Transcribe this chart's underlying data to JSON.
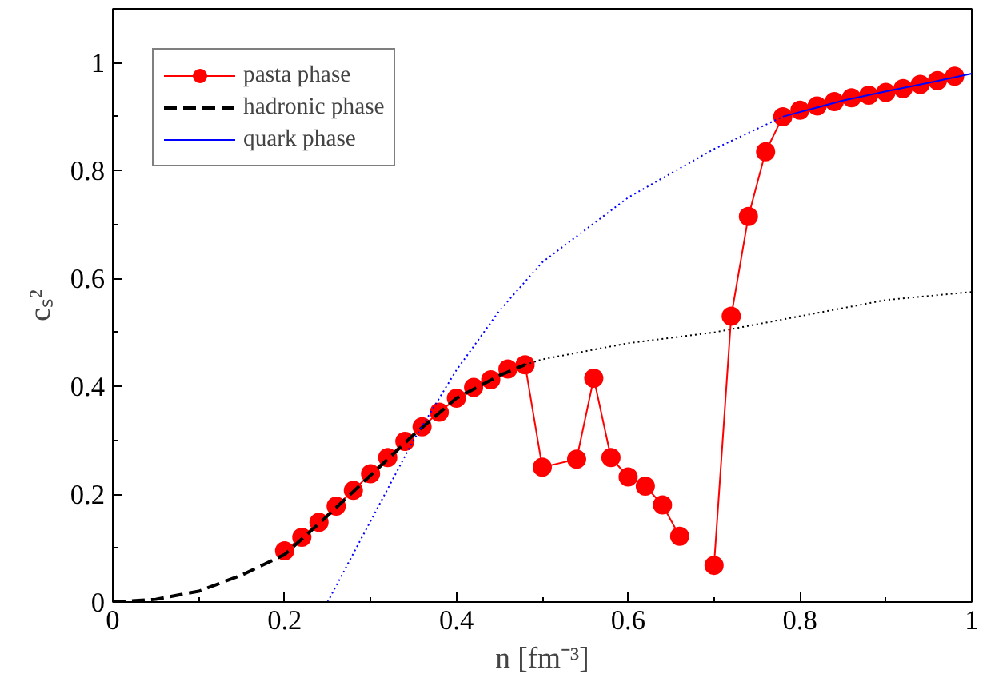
{
  "chart_data": {
    "type": "line",
    "xlabel": "n [fm⁻³]",
    "ylabel": "cₛ²",
    "xlim": [
      0,
      1
    ],
    "ylim": [
      0,
      1.1
    ],
    "xticks": [
      0,
      0.2,
      0.4,
      0.6,
      0.8,
      1
    ],
    "yticks": [
      0,
      0.2,
      0.4,
      0.6,
      0.8,
      1
    ],
    "grid": false,
    "legend": "top left",
    "series": [
      {
        "name": "pasta phase",
        "color": "#ff0000",
        "marker": "circle",
        "line_style": "solid",
        "x": [
          0.2,
          0.22,
          0.24,
          0.26,
          0.28,
          0.3,
          0.32,
          0.34,
          0.36,
          0.38,
          0.4,
          0.42,
          0.44,
          0.46,
          0.48,
          0.5,
          0.54,
          0.56,
          0.58,
          0.6,
          0.62,
          0.64,
          0.66,
          0.68,
          0.7,
          0.72,
          0.74,
          0.76,
          0.78,
          0.8,
          0.82,
          0.84,
          0.86,
          0.88,
          0.9,
          0.92,
          0.94,
          0.96,
          0.98
        ],
        "values": [
          0.095,
          0.12,
          0.148,
          0.178,
          0.207,
          0.238,
          0.268,
          0.298,
          0.325,
          0.352,
          0.378,
          0.398,
          0.412,
          0.432,
          0.44,
          0.25,
          0.265,
          0.415,
          0.268,
          0.232,
          0.215,
          0.18,
          0.122,
          null,
          0.068,
          0.53,
          0.715,
          0.835,
          0.9,
          0.912,
          0.92,
          0.928,
          0.935,
          0.94,
          0.945,
          0.952,
          0.96,
          0.967,
          0.975
        ]
      },
      {
        "name": "hadronic phase",
        "color": "#000000",
        "marker": "none",
        "line_style": "dashed",
        "x": [
          0,
          0.05,
          0.1,
          0.15,
          0.2,
          0.25,
          0.3,
          0.35,
          0.4,
          0.45,
          0.48
        ],
        "values": [
          0,
          0.005,
          0.02,
          0.05,
          0.088,
          0.16,
          0.235,
          0.31,
          0.378,
          0.42,
          0.44
        ]
      },
      {
        "name": "quark phase",
        "color": "#0000ff",
        "marker": "none",
        "line_style": "solid",
        "x": [
          0.78,
          0.85,
          0.9,
          0.95,
          1.0
        ],
        "values": [
          0.9,
          0.93,
          0.947,
          0.963,
          0.98
        ]
      },
      {
        "color": "#000000",
        "marker": "none",
        "line_style": "dotted",
        "x": [
          0.48,
          0.5,
          0.6,
          0.7,
          0.8,
          0.9,
          1.0
        ],
        "values": [
          0.44,
          0.45,
          0.48,
          0.5,
          0.53,
          0.56,
          0.575
        ]
      },
      {
        "color": "#0000ff",
        "marker": "none",
        "line_style": "dotted",
        "x": [
          0.25,
          0.3,
          0.35,
          0.4,
          0.45,
          0.5,
          0.6,
          0.7,
          0.78
        ],
        "values": [
          0,
          0.15,
          0.3,
          0.43,
          0.54,
          0.63,
          0.75,
          0.84,
          0.9
        ]
      }
    ]
  }
}
